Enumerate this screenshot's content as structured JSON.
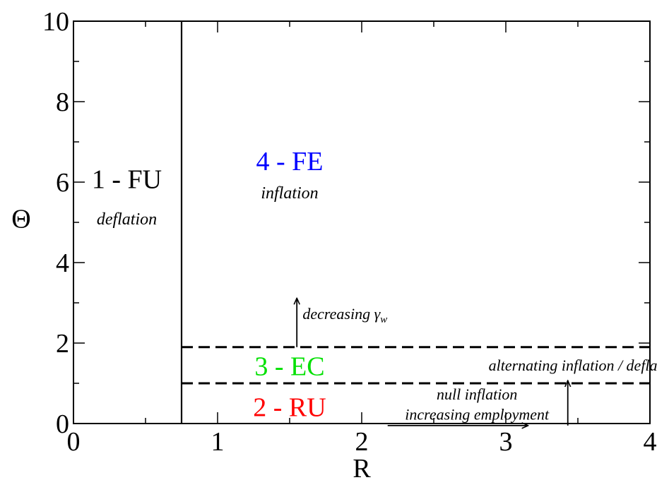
{
  "chart_data": {
    "type": "line",
    "xlabel": "R",
    "ylabel": "Θ",
    "xlim": [
      0,
      4
    ],
    "ylim": [
      0,
      10
    ],
    "xticks": [
      0,
      1,
      2,
      3,
      4
    ],
    "yticks": [
      0,
      2,
      4,
      6,
      8,
      10
    ],
    "grid": false,
    "boundaries": [
      {
        "name": "",
        "style": "solid",
        "points": [
          [
            0.75,
            0
          ],
          [
            0.75,
            10
          ]
        ]
      },
      {
        "name": "",
        "style": "dashed",
        "points": [
          [
            0.75,
            1.9
          ],
          [
            4,
            1.9
          ]
        ]
      },
      {
        "name": "",
        "style": "dashed",
        "points": [
          [
            0.75,
            1.0
          ],
          [
            4,
            1.0
          ]
        ]
      }
    ],
    "regions": [
      {
        "id": "fu",
        "label": "1 - FU",
        "sublabel": "deflation",
        "color": "#000000",
        "x": 0.37,
        "y": 5.85,
        "sub_y": 4.95
      },
      {
        "id": "fe",
        "label": "4 - FE",
        "sublabel": "inflation",
        "color": "#0000ff",
        "x": 1.5,
        "y": 6.3,
        "sub_y": 5.6
      },
      {
        "id": "ec",
        "label": "3 - EC",
        "sublabel": "",
        "color": "#00e000",
        "x": 1.5,
        "y": 1.2,
        "sub_y": null
      },
      {
        "id": "ru",
        "label": "2 - RU",
        "sublabel": "",
        "color": "#ff0000",
        "x": 1.5,
        "y": 0.18,
        "sub_y": null
      }
    ],
    "annotations": [
      {
        "id": "decreasing",
        "text_main": "decreasing γ",
        "text_sub": "w",
        "x": 1.59,
        "y": 2.6
      },
      {
        "id": "alternating",
        "text_main": "alternating inflation / deflation",
        "text_sub": "",
        "x": 3.55,
        "y": 1.32
      },
      {
        "id": "null-inflation",
        "text_main": "null inflation",
        "text_sub": "",
        "x": 2.8,
        "y": 0.6
      },
      {
        "id": "increasing-employment",
        "text_main": "increasing employment",
        "text_sub": "",
        "x": 2.8,
        "y": 0.1
      }
    ],
    "arrows": [
      {
        "id": "arrow-up-gamma",
        "from": [
          1.55,
          1.9
        ],
        "to": [
          1.55,
          3.1
        ]
      },
      {
        "id": "arrow-up-right",
        "from": [
          3.43,
          -0.05
        ],
        "to": [
          3.43,
          1.05
        ]
      },
      {
        "id": "arrow-right",
        "from": [
          2.18,
          -0.05
        ],
        "to": [
          3.15,
          -0.05
        ]
      }
    ]
  }
}
